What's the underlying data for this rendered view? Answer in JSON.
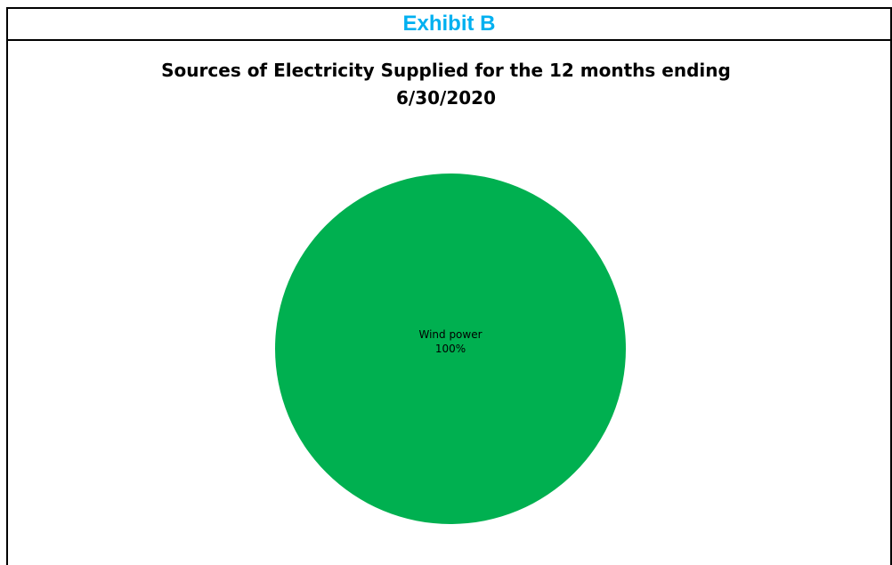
{
  "exhibit": {
    "title": "Exhibit B"
  },
  "chart_data": {
    "type": "pie",
    "title_line1": "Sources of Electricity Supplied for the 12 months ending",
    "title_line2": "6/30/2020",
    "slices": [
      {
        "label": "Wind power",
        "value": 100,
        "value_label": "100%",
        "color": "#00b050"
      }
    ]
  }
}
